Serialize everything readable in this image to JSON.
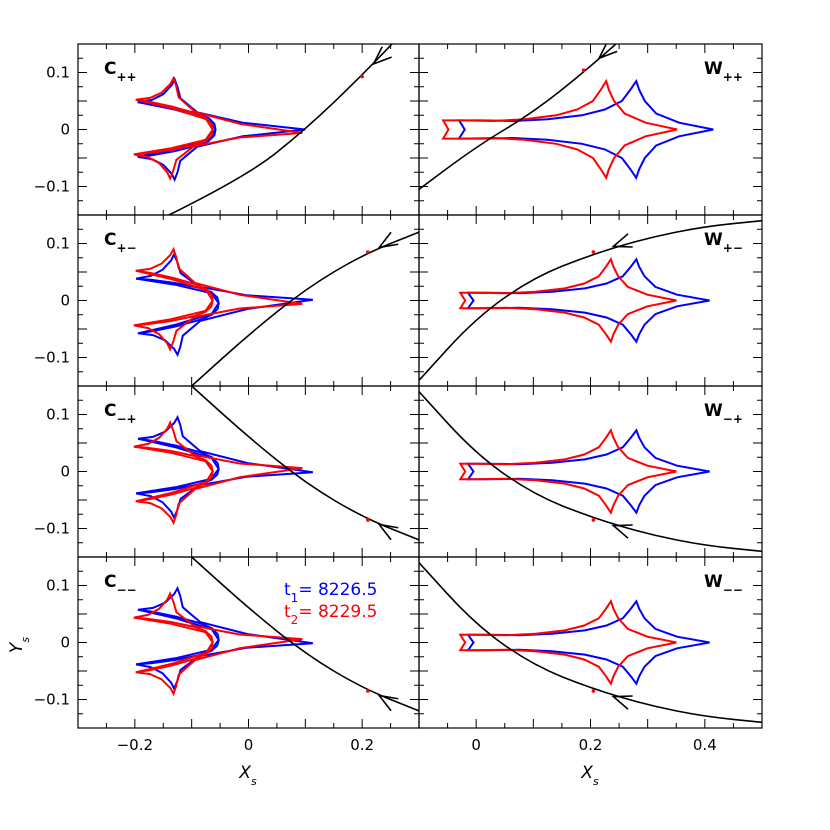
{
  "colors": {
    "epoch1": "#0000ff",
    "epoch2": "#ff0000",
    "trajectory": "#000000"
  },
  "chart_data": {
    "type": "line",
    "layout_grid": {
      "rows": 4,
      "cols": 2
    },
    "xlabel": "X",
    "xlabel_sub": "s",
    "ylabel": "Y",
    "ylabel_sub": "s",
    "left_col": {
      "xlim": [
        -0.3,
        0.3
      ],
      "xticks": [
        -0.2,
        0,
        0.2
      ],
      "xtick_labels": [
        "−0.2",
        "0",
        "0.2"
      ]
    },
    "right_col": {
      "xlim": [
        -0.1,
        0.5
      ],
      "xticks": [
        0,
        0.2,
        0.4
      ],
      "xtick_labels": [
        "0",
        "0.2",
        "0.4"
      ]
    },
    "ylim": [
      -0.15,
      0.15
    ],
    "yticks": [
      -0.1,
      0,
      0.1
    ],
    "ytick_labels": [
      "−0.1",
      "0",
      "0.1"
    ],
    "legend": {
      "position": "top-right of bottom-left panel",
      "entries": [
        {
          "base": "t",
          "sub": "1",
          "text": "=  8226.5",
          "color": "#0000ff"
        },
        {
          "base": "t",
          "sub": "2",
          "text": "=  8229.5",
          "color": "#ff0000"
        }
      ]
    },
    "panels": [
      {
        "id": "Cpp",
        "label": "C",
        "sub": "++",
        "row": 0,
        "col": 0,
        "kind": "close",
        "blue": {
          "cx": -0.07,
          "cy": 0.0,
          "sx": 1.0,
          "sy": 1.0,
          "rot": 0
        },
        "red": {
          "cx": -0.075,
          "cy": 0.0,
          "sx": 1.0,
          "sy": 1.0,
          "rot": -2
        },
        "trajectory": {
          "points": [
            [
              -0.24,
              -0.2
            ],
            [
              0.0,
              -0.08
            ],
            [
              0.1,
              0.0
            ],
            [
              0.2,
              0.095
            ],
            [
              0.3,
              0.2
            ]
          ],
          "arrow_at": [
            0.22,
            0.115
          ],
          "arrow_dir": [
            -1,
            -0.9
          ],
          "marker": [
            0.2,
            0.093
          ]
        }
      },
      {
        "id": "Wpp",
        "label": "W",
        "sub": "++",
        "row": 0,
        "col": 1,
        "kind": "wide",
        "blue": {
          "cx": 0.185,
          "cy": 0.0,
          "sx": 1.0,
          "sy": 1.0,
          "rot": 0
        },
        "red": {
          "cx": 0.14,
          "cy": 0.0,
          "sx": 0.92,
          "sy": 1.0,
          "rot": 0
        },
        "trajectory": {
          "points": [
            [
              -0.12,
              -0.12
            ],
            [
              0.0,
              -0.03
            ],
            [
              0.1,
              0.03
            ],
            [
              0.2,
              0.11
            ],
            [
              0.3,
              0.2
            ]
          ],
          "arrow_at": [
            0.215,
            0.125
          ],
          "arrow_dir": [
            -1,
            -0.9
          ],
          "marker": [
            0.188,
            0.104
          ]
        }
      },
      {
        "id": "Cpm",
        "label": "C",
        "sub": "+−",
        "row": 1,
        "col": 0,
        "kind": "close",
        "blue": {
          "cx": -0.065,
          "cy": -0.005,
          "sx": 1.05,
          "sy": 1.0,
          "rot": 2
        },
        "red": {
          "cx": -0.075,
          "cy": 0.0,
          "sx": 1.0,
          "sy": 1.0,
          "rot": -2
        },
        "trajectory": {
          "points": [
            [
              -0.1,
              -0.15
            ],
            [
              0.0,
              -0.06
            ],
            [
              0.1,
              0.02
            ],
            [
              0.2,
              0.08
            ],
            [
              0.3,
              0.12
            ]
          ],
          "arrow_at": [
            0.23,
            0.093
          ],
          "arrow_dir": [
            -1,
            -0.6
          ],
          "marker": [
            0.21,
            0.085
          ]
        }
      },
      {
        "id": "Wpm",
        "label": "W",
        "sub": "+−",
        "row": 1,
        "col": 1,
        "kind": "wide",
        "blue": {
          "cx": 0.19,
          "cy": 0.0,
          "sx": 0.95,
          "sy": 0.85,
          "rot": 0
        },
        "red": {
          "cx": 0.155,
          "cy": 0.0,
          "sx": 0.85,
          "sy": 0.85,
          "rot": 0
        },
        "trajectory": {
          "points": [
            [
              -0.1,
              -0.14
            ],
            [
              0.0,
              -0.03
            ],
            [
              0.1,
              0.04
            ],
            [
              0.2,
              0.08
            ],
            [
              0.3,
              0.11
            ],
            [
              0.4,
              0.13
            ],
            [
              0.5,
              0.14
            ]
          ],
          "arrow_at": [
            0.24,
            0.095
          ],
          "arrow_dir": [
            -1,
            -0.35
          ],
          "marker": [
            0.205,
            0.085
          ]
        }
      },
      {
        "id": "Cmp",
        "label": "C",
        "sub": "−+",
        "row": 2,
        "col": 0,
        "kind": "close",
        "blue": {
          "cx": -0.065,
          "cy": 0.005,
          "sx": 1.05,
          "sy": 1.0,
          "rot": -2
        },
        "red": {
          "cx": -0.075,
          "cy": 0.0,
          "sx": 1.0,
          "sy": 1.0,
          "rot": 2
        },
        "trajectory": {
          "points": [
            [
              -0.1,
              0.15
            ],
            [
              0.0,
              0.06
            ],
            [
              0.1,
              -0.02
            ],
            [
              0.2,
              -0.08
            ],
            [
              0.3,
              -0.12
            ]
          ],
          "arrow_at": [
            0.23,
            -0.093
          ],
          "arrow_dir": [
            -1,
            0.6
          ],
          "marker": [
            0.21,
            -0.085
          ]
        }
      },
      {
        "id": "Wmp",
        "label": "W",
        "sub": "−+",
        "row": 2,
        "col": 1,
        "kind": "wide",
        "blue": {
          "cx": 0.19,
          "cy": 0.0,
          "sx": 0.95,
          "sy": 0.85,
          "rot": 0
        },
        "red": {
          "cx": 0.155,
          "cy": 0.0,
          "sx": 0.85,
          "sy": 0.85,
          "rot": 0
        },
        "trajectory": {
          "points": [
            [
              -0.1,
              0.14
            ],
            [
              0.0,
              0.03
            ],
            [
              0.1,
              -0.04
            ],
            [
              0.2,
              -0.08
            ],
            [
              0.3,
              -0.11
            ],
            [
              0.4,
              -0.13
            ],
            [
              0.5,
              -0.14
            ]
          ],
          "arrow_at": [
            0.24,
            -0.095
          ],
          "arrow_dir": [
            -1,
            0.35
          ],
          "marker": [
            0.205,
            -0.085
          ]
        }
      },
      {
        "id": "Cmm",
        "label": "C",
        "sub": "−−",
        "row": 3,
        "col": 0,
        "kind": "close",
        "blue": {
          "cx": -0.065,
          "cy": 0.005,
          "sx": 1.05,
          "sy": 1.0,
          "rot": -2
        },
        "red": {
          "cx": -0.075,
          "cy": 0.0,
          "sx": 1.0,
          "sy": 1.0,
          "rot": 2
        },
        "trajectory": {
          "points": [
            [
              -0.1,
              0.15
            ],
            [
              0.0,
              0.06
            ],
            [
              0.1,
              -0.02
            ],
            [
              0.2,
              -0.08
            ],
            [
              0.3,
              -0.12
            ]
          ],
          "arrow_at": [
            0.23,
            -0.093
          ],
          "arrow_dir": [
            -1,
            0.6
          ],
          "marker": [
            0.21,
            -0.085
          ]
        }
      },
      {
        "id": "Wmm",
        "label": "W",
        "sub": "−−",
        "row": 3,
        "col": 1,
        "kind": "wide",
        "blue": {
          "cx": 0.19,
          "cy": 0.0,
          "sx": 0.95,
          "sy": 0.85,
          "rot": 0
        },
        "red": {
          "cx": 0.155,
          "cy": 0.0,
          "sx": 0.85,
          "sy": 0.85,
          "rot": 0
        },
        "trajectory": {
          "points": [
            [
              -0.1,
              0.14
            ],
            [
              0.0,
              0.03
            ],
            [
              0.1,
              -0.04
            ],
            [
              0.2,
              -0.08
            ],
            [
              0.3,
              -0.11
            ],
            [
              0.4,
              -0.13
            ],
            [
              0.5,
              -0.14
            ]
          ],
          "arrow_at": [
            0.24,
            -0.095
          ],
          "arrow_dir": [
            -1,
            0.35
          ],
          "marker": [
            0.205,
            -0.085
          ]
        }
      }
    ]
  }
}
